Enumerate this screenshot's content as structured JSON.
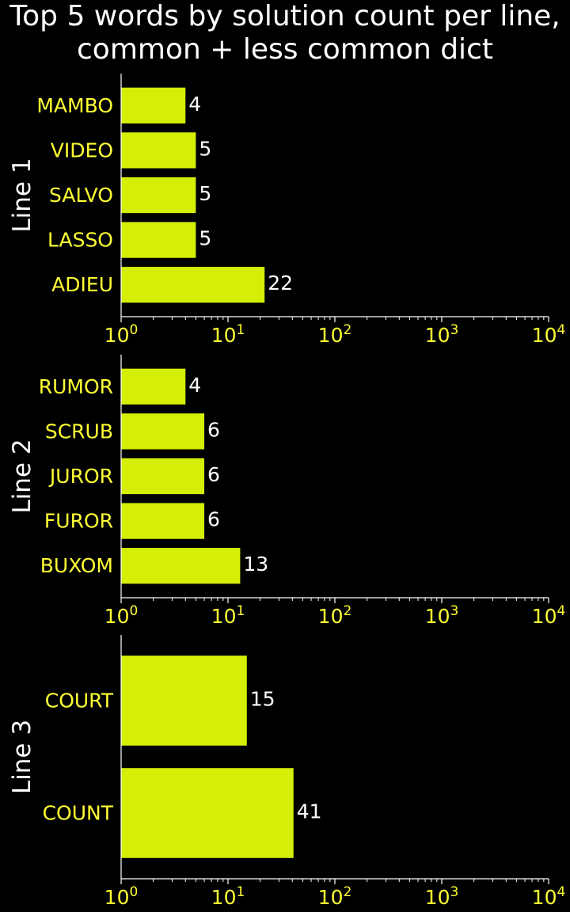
{
  "title_lines": [
    "Top 5 words by solution count per line,",
    "common + less common dict"
  ],
  "colors": {
    "background": "#000000",
    "bar": "#d4ee06",
    "tick_label": "#ffff33",
    "value_label": "#ffffff",
    "axis": "#ffffff",
    "ylabel": "#ffffff"
  },
  "chart_data": [
    {
      "type": "bar",
      "orientation": "horizontal",
      "ylabel": "Line 1",
      "xscale": "log",
      "xlim": [
        1,
        10000
      ],
      "xticks": [
        1,
        10,
        100,
        1000,
        10000
      ],
      "categories": [
        "MAMBO",
        "VIDEO",
        "SALVO",
        "LASSO",
        "ADIEU"
      ],
      "values": [
        4,
        5,
        5,
        5,
        22
      ]
    },
    {
      "type": "bar",
      "orientation": "horizontal",
      "ylabel": "Line 2",
      "xscale": "log",
      "xlim": [
        1,
        10000
      ],
      "xticks": [
        1,
        10,
        100,
        1000,
        10000
      ],
      "categories": [
        "RUMOR",
        "SCRUB",
        "JUROR",
        "FUROR",
        "BUXOM"
      ],
      "values": [
        4,
        6,
        6,
        6,
        13
      ]
    },
    {
      "type": "bar",
      "orientation": "horizontal",
      "ylabel": "Line 3",
      "xscale": "log",
      "xlim": [
        1,
        10000
      ],
      "xticks": [
        1,
        10,
        100,
        1000,
        10000
      ],
      "categories": [
        "COURT",
        "COUNT"
      ],
      "values": [
        15,
        41
      ]
    }
  ]
}
